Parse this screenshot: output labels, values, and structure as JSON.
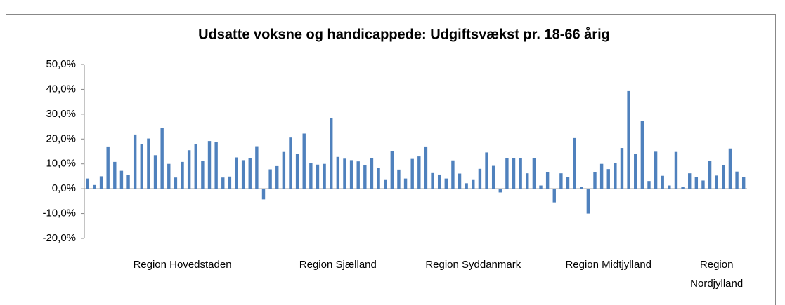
{
  "chart_data": {
    "type": "bar",
    "title": "Udsatte voksne og handicappede: Udgiftsvækst pr. 18-66 årig",
    "categories": [
      null,
      null,
      null,
      null,
      null,
      null,
      null,
      null,
      null,
      null,
      null,
      null,
      null,
      null,
      "Region Hovedstaden",
      null,
      null,
      null,
      null,
      null,
      null,
      null,
      null,
      null,
      null,
      null,
      null,
      null,
      null,
      null,
      null,
      null,
      null,
      null,
      null,
      null,
      null,
      "Region Sjælland",
      null,
      null,
      null,
      null,
      null,
      null,
      null,
      null,
      null,
      null,
      null,
      null,
      null,
      null,
      null,
      null,
      null,
      null,
      null,
      "Region Syddanmark",
      null,
      null,
      null,
      null,
      null,
      null,
      null,
      null,
      null,
      null,
      null,
      null,
      null,
      null,
      null,
      null,
      null,
      null,
      null,
      "Region Midtjylland",
      null,
      null,
      null,
      null,
      null,
      null,
      null,
      null,
      null,
      null,
      null,
      null,
      null,
      null,
      null,
      "Region Nordjylland",
      null,
      null,
      null,
      null
    ],
    "values": [
      4.1,
      1.5,
      5,
      17,
      10.8,
      7.2,
      5.6,
      21.8,
      18,
      20.2,
      13.5,
      24.5,
      10,
      4.5,
      10.8,
      15.5,
      18.1,
      11.1,
      19.2,
      18.7,
      4.5,
      4.9,
      12.6,
      11.5,
      12.2,
      17.1,
      -4.3,
      7.8,
      9.1,
      14.8,
      20.6,
      14,
      22.2,
      10.2,
      9.7,
      10,
      28.5,
      12.8,
      12.1,
      11.5,
      11,
      9.4,
      12.2,
      8.5,
      3.5,
      15,
      7.7,
      4.1,
      12,
      13,
      17,
      6.3,
      5.7,
      4.1,
      11.4,
      6.1,
      2.2,
      3.5,
      8,
      14.6,
      9.2,
      -1.5,
      12.4,
      12.4,
      12.4,
      6.2,
      12.3,
      1.3,
      6.6,
      -5.5,
      6.2,
      4.6,
      20.4,
      0.8,
      -10,
      6.6,
      10,
      7.9,
      10.3,
      16.4,
      39.3,
      14.1,
      27.4,
      3.1,
      14.9,
      5.2,
      1.3,
      14.8,
      0.6,
      6.2,
      4.6,
      3.3,
      11.1,
      5.3,
      9.6,
      16.2,
      6.9,
      4.7
    ],
    "color": "#4f81bd",
    "ylim": [
      -20,
      50
    ],
    "yticks": [
      {
        "value": -20,
        "label": "-20,0%"
      },
      {
        "value": -10,
        "label": "-10,0%"
      },
      {
        "value": 0,
        "label": "0,0%"
      },
      {
        "value": 10,
        "label": "10,0%"
      },
      {
        "value": 20,
        "label": "20,0%"
      },
      {
        "value": 30,
        "label": "30,0%"
      },
      {
        "value": 40,
        "label": "40,0%"
      },
      {
        "value": 50,
        "label": "50,0%"
      }
    ],
    "grid": false
  }
}
